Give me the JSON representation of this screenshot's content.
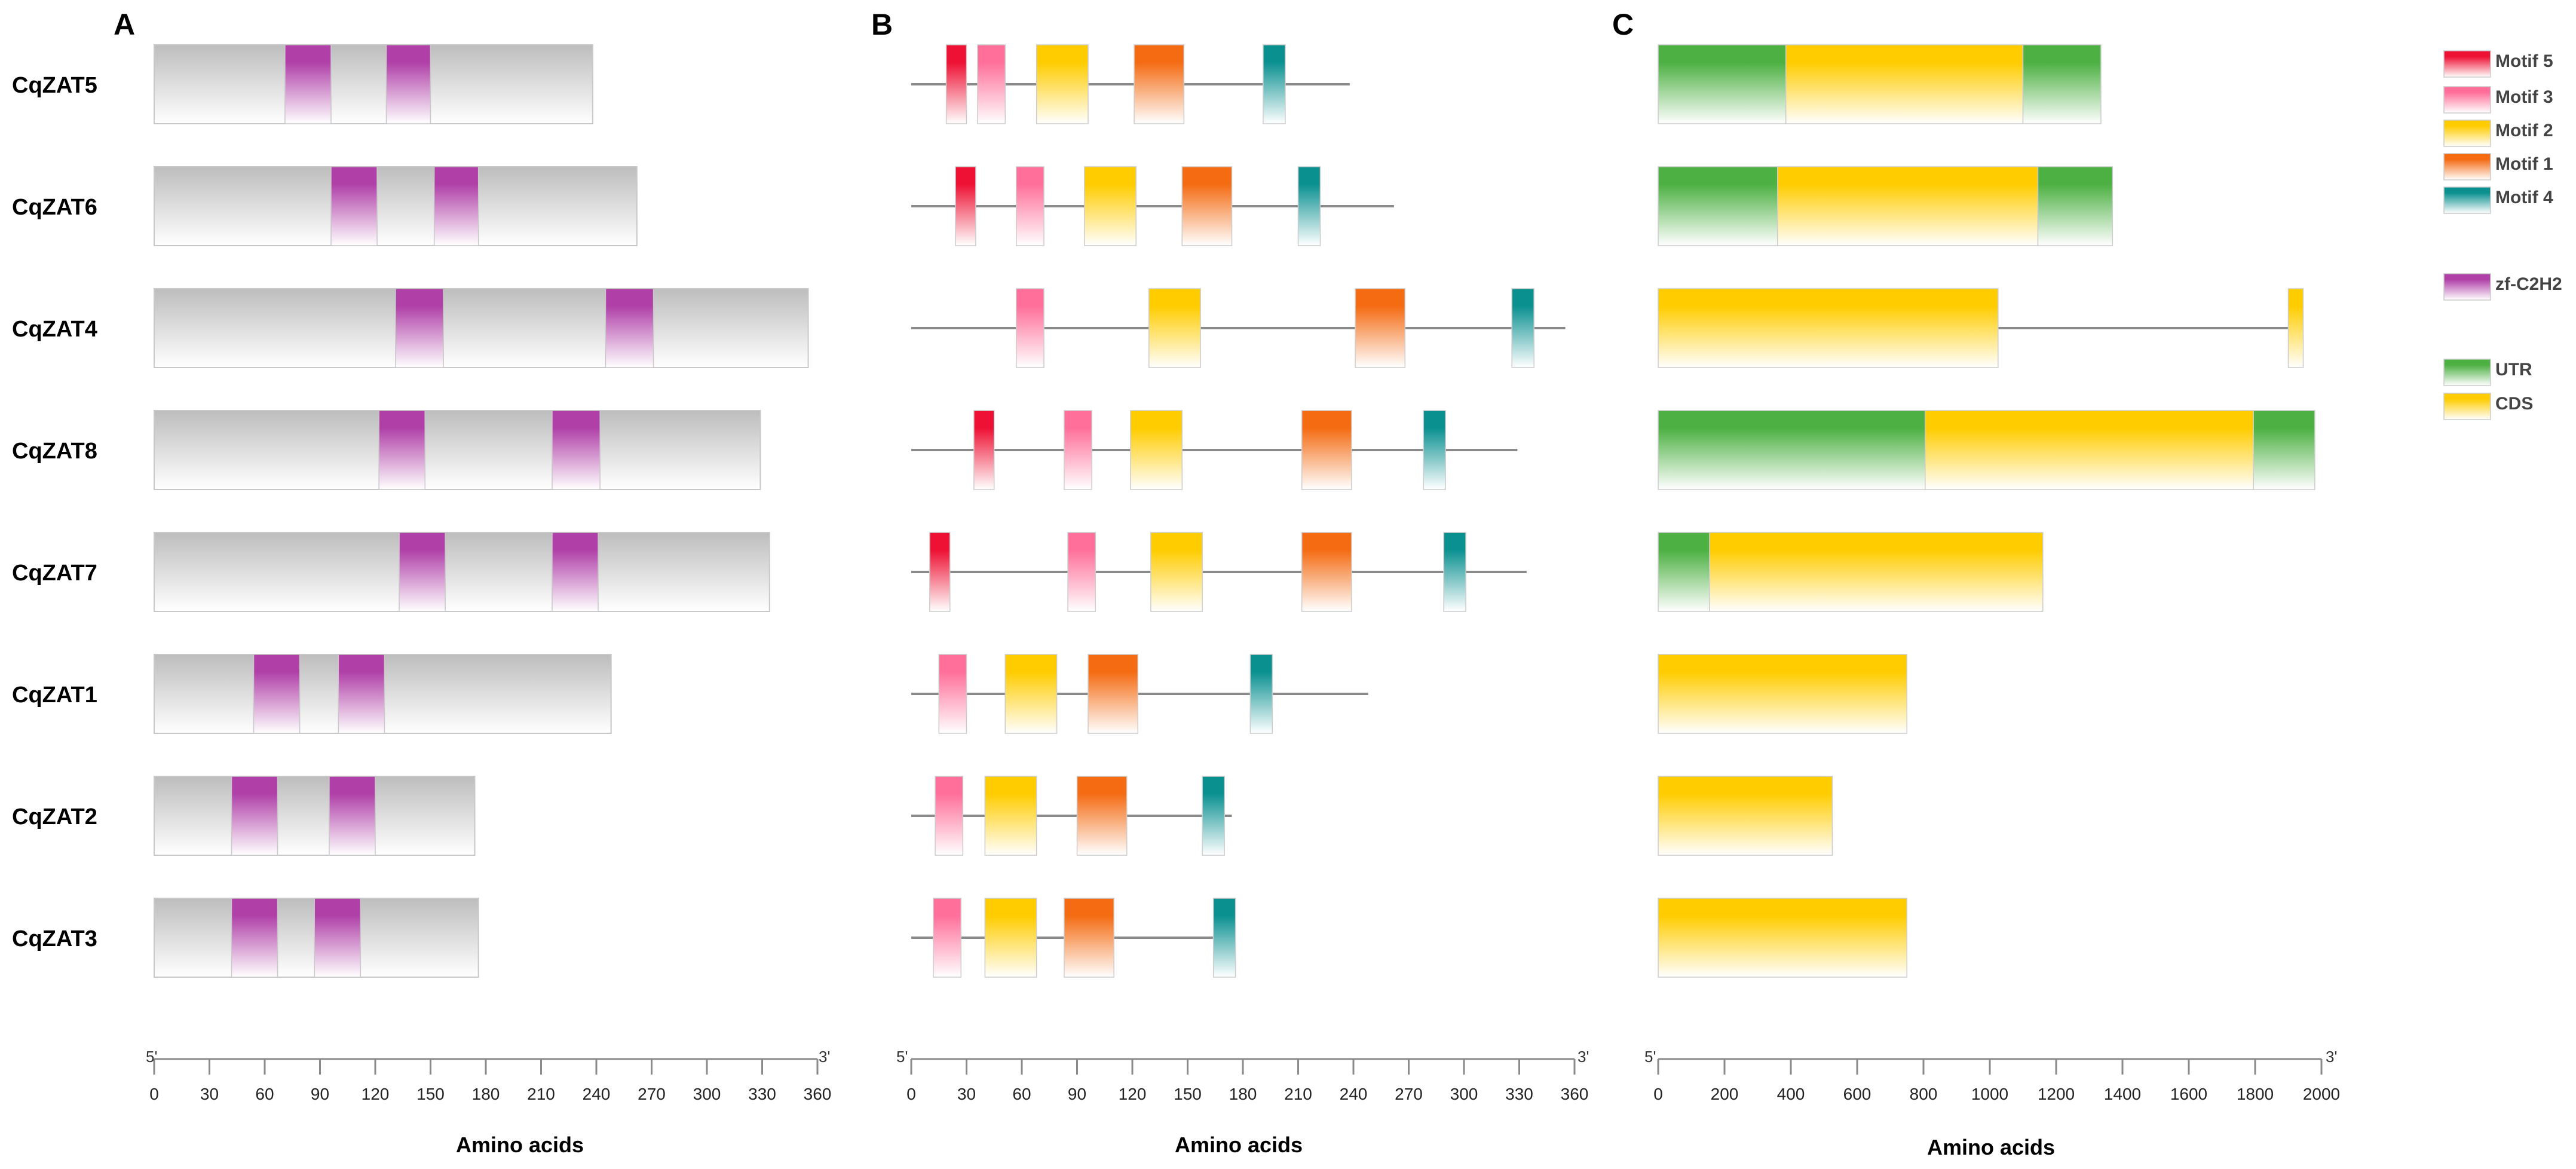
{
  "colors": {
    "motif5": "#EE1133",
    "motif3": "#FF6F9A",
    "motif2": "#FFCC00",
    "motif1": "#F46B12",
    "motif4": "#0B9090",
    "zf": "#B040A8",
    "utr": "#4CB042",
    "cds": "#FFCC00",
    "protein": "#BDBDBD",
    "line": "#8A8A8A"
  },
  "panels": {
    "A": {
      "label": "A",
      "scale_label": "Amino acids",
      "five_prime": "5'",
      "three_prime": "3'",
      "max": 360,
      "ticks": [
        "0",
        "30",
        "60",
        "90",
        "120",
        "150",
        "180",
        "210",
        "240",
        "270",
        "300",
        "330",
        "360"
      ]
    },
    "B": {
      "label": "B",
      "scale_label": "Amino acids",
      "five_prime": "5'",
      "three_prime": "3'",
      "max": 360,
      "ticks": [
        "0",
        "30",
        "60",
        "90",
        "120",
        "150",
        "180",
        "210",
        "240",
        "270",
        "300",
        "330",
        "360"
      ]
    },
    "C": {
      "label": "C",
      "scale_label": "Amino acids",
      "five_prime": "5'",
      "three_prime": "3'",
      "max": 2000,
      "ticks": [
        "0",
        "200",
        "400",
        "600",
        "800",
        "1000",
        "1200",
        "1400",
        "1600",
        "1800",
        "2000"
      ]
    }
  },
  "genes": [
    {
      "name": "CqZAT5",
      "protein_length": 238,
      "zf": [
        [
          71,
          96
        ],
        [
          126,
          150
        ]
      ],
      "motif_line_length": 238,
      "motifs": [
        {
          "id": "motif5",
          "start": 19,
          "end": 30
        },
        {
          "id": "motif3",
          "start": 36,
          "end": 51
        },
        {
          "id": "motif2",
          "start": 68,
          "end": 96
        },
        {
          "id": "motif1",
          "start": 121,
          "end": 148
        },
        {
          "id": "motif4",
          "start": 191,
          "end": 203
        }
      ],
      "gene_structure": [
        {
          "type": "utr",
          "start": 0,
          "end": 385
        },
        {
          "type": "cds",
          "start": 385,
          "end": 1100
        },
        {
          "type": "utr",
          "start": 1100,
          "end": 1335
        }
      ],
      "gene_line_length": 1335
    },
    {
      "name": "CqZAT6",
      "protein_length": 262,
      "zf": [
        [
          96,
          121
        ],
        [
          152,
          176
        ]
      ],
      "motif_line_length": 262,
      "motifs": [
        {
          "id": "motif5",
          "start": 24,
          "end": 35
        },
        {
          "id": "motif3",
          "start": 57,
          "end": 72
        },
        {
          "id": "motif2",
          "start": 94,
          "end": 122
        },
        {
          "id": "motif1",
          "start": 147,
          "end": 174
        },
        {
          "id": "motif4",
          "start": 210,
          "end": 222
        }
      ],
      "gene_structure": [
        {
          "type": "utr",
          "start": 0,
          "end": 360
        },
        {
          "type": "cds",
          "start": 360,
          "end": 1145
        },
        {
          "type": "utr",
          "start": 1145,
          "end": 1370
        }
      ],
      "gene_line_length": 1370
    },
    {
      "name": "CqZAT4",
      "protein_length": 355,
      "zf": [
        [
          131,
          157
        ],
        [
          245,
          271
        ]
      ],
      "motif_line_length": 355,
      "motifs": [
        {
          "id": "motif3",
          "start": 57,
          "end": 72
        },
        {
          "id": "motif2",
          "start": 129,
          "end": 157
        },
        {
          "id": "motif1",
          "start": 241,
          "end": 268
        },
        {
          "id": "motif4",
          "start": 326,
          "end": 338
        }
      ],
      "gene_structure": [
        {
          "type": "cds",
          "start": 0,
          "end": 1025
        },
        {
          "type": "cds",
          "start": 1900,
          "end": 1945
        }
      ],
      "gene_line_length": 1945
    },
    {
      "name": "CqZAT8",
      "protein_length": 329,
      "zf": [
        [
          122,
          147
        ],
        [
          216,
          242
        ]
      ],
      "motif_line_length": 329,
      "motifs": [
        {
          "id": "motif5",
          "start": 34,
          "end": 45
        },
        {
          "id": "motif3",
          "start": 83,
          "end": 98
        },
        {
          "id": "motif2",
          "start": 119,
          "end": 147
        },
        {
          "id": "motif1",
          "start": 212,
          "end": 239
        },
        {
          "id": "motif4",
          "start": 278,
          "end": 290
        }
      ],
      "gene_structure": [
        {
          "type": "utr",
          "start": 0,
          "end": 805
        },
        {
          "type": "cds",
          "start": 805,
          "end": 1795
        },
        {
          "type": "utr",
          "start": 1795,
          "end": 1980
        }
      ],
      "gene_line_length": 1980
    },
    {
      "name": "CqZAT7",
      "protein_length": 334,
      "zf": [
        [
          133,
          158
        ],
        [
          216,
          241
        ]
      ],
      "motif_line_length": 334,
      "motifs": [
        {
          "id": "motif5",
          "start": 10,
          "end": 21
        },
        {
          "id": "motif3",
          "start": 85,
          "end": 100
        },
        {
          "id": "motif2",
          "start": 130,
          "end": 158
        },
        {
          "id": "motif1",
          "start": 212,
          "end": 239
        },
        {
          "id": "motif4",
          "start": 289,
          "end": 301
        }
      ],
      "gene_structure": [
        {
          "type": "utr",
          "start": 0,
          "end": 155
        },
        {
          "type": "cds",
          "start": 155,
          "end": 1160
        }
      ],
      "gene_line_length": 1160
    },
    {
      "name": "CqZAT1",
      "protein_length": 248,
      "zf": [
        [
          54,
          79
        ],
        [
          100,
          125
        ]
      ],
      "motif_line_length": 248,
      "motifs": [
        {
          "id": "motif3",
          "start": 15,
          "end": 30
        },
        {
          "id": "motif2",
          "start": 51,
          "end": 79
        },
        {
          "id": "motif1",
          "start": 96,
          "end": 123
        },
        {
          "id": "motif4",
          "start": 184,
          "end": 196
        }
      ],
      "gene_structure": [
        {
          "type": "cds",
          "start": 0,
          "end": 750
        }
      ],
      "gene_line_length": 750
    },
    {
      "name": "CqZAT2",
      "protein_length": 174,
      "zf": [
        [
          42,
          67
        ],
        [
          95,
          120
        ]
      ],
      "motif_line_length": 174,
      "motifs": [
        {
          "id": "motif3",
          "start": 13,
          "end": 28
        },
        {
          "id": "motif2",
          "start": 40,
          "end": 68
        },
        {
          "id": "motif1",
          "start": 90,
          "end": 117
        },
        {
          "id": "motif4",
          "start": 158,
          "end": 170
        }
      ],
      "gene_structure": [
        {
          "type": "cds",
          "start": 0,
          "end": 525
        }
      ],
      "gene_line_length": 525
    },
    {
      "name": "CqZAT3",
      "protein_length": 176,
      "zf": [
        [
          42,
          67
        ],
        [
          87,
          112
        ]
      ],
      "motif_line_length": 176,
      "motifs": [
        {
          "id": "motif3",
          "start": 12,
          "end": 27
        },
        {
          "id": "motif2",
          "start": 40,
          "end": 68
        },
        {
          "id": "motif1",
          "start": 83,
          "end": 110
        },
        {
          "id": "motif4",
          "start": 164,
          "end": 176
        }
      ],
      "gene_structure": [
        {
          "type": "cds",
          "start": 0,
          "end": 750
        }
      ],
      "gene_line_length": 750
    }
  ],
  "legend": [
    {
      "id": "motif5",
      "label": "Motif 5",
      "group": 1
    },
    {
      "id": "motif3",
      "label": "Motif 3",
      "group": 1
    },
    {
      "id": "motif2",
      "label": "Motif 2",
      "group": 1
    },
    {
      "id": "motif1",
      "label": "Motif 1",
      "group": 1
    },
    {
      "id": "motif4",
      "label": "Motif 4",
      "group": 1
    },
    {
      "id": "zf",
      "label": "zf-C2H2",
      "group": 2
    },
    {
      "id": "utr",
      "label": "UTR",
      "group": 3
    },
    {
      "id": "cds",
      "label": "CDS",
      "group": 3
    }
  ]
}
